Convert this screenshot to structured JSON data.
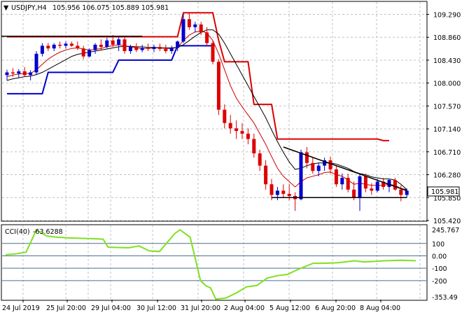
{
  "header": {
    "arrow": "▼",
    "symbol_tf": "USDJPY,H4",
    "ohlc": "105.956 106.075 105.889 105.981"
  },
  "price_axis": {
    "ticks": [
      "109.290",
      "108.860",
      "108.430",
      "108.000",
      "107.570",
      "107.140",
      "106.710",
      "106.280",
      "105.850",
      "105.420"
    ],
    "current": "105.981"
  },
  "time_axis": {
    "ticks": [
      "24 Jul 2019",
      "25 Jul 20:00",
      "29 Jul 04:00",
      "30 Jul 12:00",
      "31 Jul 20:00",
      "2 Aug 04:00",
      "5 Aug 12:00",
      "6 Aug 20:00",
      "8 Aug 04:00"
    ]
  },
  "cci_panel": {
    "title": "CCI(40)",
    "value": "-63.6288",
    "ticks": [
      "245.767",
      "100",
      "0.00",
      "-100",
      "-200",
      "-353.49"
    ],
    "levels": [
      100,
      0,
      -100,
      -200
    ]
  },
  "colors": {
    "bull": "#0000cc",
    "bear": "#dd0000",
    "ma_fast": "#cc0000",
    "ma_slow": "#000000",
    "donchian_high": "#dd0000",
    "donchian_low": "#0000cc",
    "cci_line": "#80e020",
    "level_line": "#4a7090",
    "grid": "#c0c0c0"
  },
  "chart_data": {
    "type": "candlestick",
    "series": [
      {
        "name": "USDJPY,H4",
        "ohlc": [
          [
            108.15,
            108.25,
            108.05,
            108.2
          ],
          [
            108.2,
            108.28,
            108.12,
            108.18
          ],
          [
            108.18,
            108.26,
            108.1,
            108.22
          ],
          [
            108.22,
            108.3,
            108.12,
            108.15
          ],
          [
            108.15,
            108.24,
            108.05,
            108.2
          ],
          [
            108.2,
            108.6,
            108.15,
            108.55
          ],
          [
            108.55,
            108.75,
            108.5,
            108.7
          ],
          [
            108.7,
            108.75,
            108.6,
            108.65
          ],
          [
            108.65,
            108.75,
            108.6,
            108.72
          ],
          [
            108.72,
            108.78,
            108.65,
            108.7
          ],
          [
            108.7,
            108.78,
            108.65,
            108.74
          ],
          [
            108.74,
            108.78,
            108.68,
            108.7
          ],
          [
            108.7,
            108.78,
            108.62,
            108.65
          ],
          [
            108.65,
            108.7,
            108.45,
            108.5
          ],
          [
            108.5,
            108.65,
            108.48,
            108.62
          ],
          [
            108.62,
            108.75,
            108.55,
            108.72
          ],
          [
            108.72,
            108.82,
            108.62,
            108.68
          ],
          [
            108.68,
            108.85,
            108.65,
            108.8
          ],
          [
            108.8,
            108.9,
            108.68,
            108.72
          ],
          [
            108.72,
            108.86,
            108.6,
            108.82
          ],
          [
            108.82,
            108.86,
            108.55,
            108.6
          ],
          [
            108.6,
            108.72,
            108.55,
            108.68
          ],
          [
            108.68,
            108.75,
            108.58,
            108.62
          ],
          [
            108.62,
            108.72,
            108.58,
            108.66
          ],
          [
            108.66,
            108.74,
            108.6,
            108.64
          ],
          [
            108.64,
            108.72,
            108.58,
            108.68
          ],
          [
            108.68,
            108.74,
            108.6,
            108.64
          ],
          [
            108.64,
            108.72,
            108.56,
            108.6
          ],
          [
            108.6,
            108.7,
            108.55,
            108.66
          ],
          [
            108.66,
            108.8,
            108.6,
            108.78
          ],
          [
            108.78,
            109.3,
            108.75,
            109.2
          ],
          [
            109.2,
            109.32,
            109.0,
            109.05
          ],
          [
            109.05,
            109.15,
            108.95,
            109.1
          ],
          [
            109.1,
            109.15,
            108.9,
            108.95
          ],
          [
            108.95,
            109.05,
            108.7,
            108.75
          ],
          [
            108.75,
            108.8,
            108.35,
            108.4
          ],
          [
            108.4,
            108.45,
            107.4,
            107.5
          ],
          [
            107.5,
            107.6,
            107.15,
            107.25
          ],
          [
            107.25,
            107.4,
            107.05,
            107.15
          ],
          [
            107.15,
            107.3,
            106.95,
            107.1
          ],
          [
            107.1,
            107.25,
            106.95,
            107.05
          ],
          [
            107.05,
            107.15,
            106.85,
            106.95
          ],
          [
            106.95,
            107.05,
            106.6,
            106.68
          ],
          [
            106.68,
            106.75,
            106.35,
            106.45
          ],
          [
            106.45,
            106.55,
            106.0,
            106.1
          ],
          [
            106.1,
            106.2,
            105.8,
            105.9
          ],
          [
            105.9,
            106.05,
            105.8,
            105.98
          ],
          [
            105.98,
            106.1,
            105.85,
            105.92
          ],
          [
            105.92,
            106.1,
            105.8,
            105.88
          ],
          [
            105.88,
            105.95,
            105.6,
            105.82
          ],
          [
            105.82,
            106.75,
            105.8,
            106.7
          ],
          [
            106.7,
            106.8,
            106.4,
            106.5
          ],
          [
            106.5,
            106.6,
            106.3,
            106.35
          ],
          [
            106.35,
            106.5,
            106.25,
            106.45
          ],
          [
            106.45,
            106.6,
            106.35,
            106.55
          ],
          [
            106.55,
            106.62,
            106.3,
            106.38
          ],
          [
            106.38,
            106.45,
            106.05,
            106.1
          ],
          [
            106.1,
            106.3,
            106.0,
            106.22
          ],
          [
            106.22,
            106.3,
            105.95,
            106.0
          ],
          [
            106.0,
            106.15,
            105.8,
            105.85
          ],
          [
            105.85,
            106.3,
            105.6,
            106.25
          ],
          [
            106.25,
            106.3,
            105.95,
            106.02
          ],
          [
            106.02,
            106.12,
            105.9,
            105.98
          ],
          [
            105.98,
            106.2,
            105.95,
            106.15
          ],
          [
            106.15,
            106.22,
            106.0,
            106.05
          ],
          [
            106.05,
            106.2,
            105.95,
            106.18
          ],
          [
            106.18,
            106.22,
            105.98,
            106.0
          ],
          [
            106.0,
            106.08,
            105.78,
            105.9
          ],
          [
            105.9,
            106.02,
            105.85,
            105.98
          ]
        ]
      }
    ],
    "moving_averages": [
      {
        "color": "#cc0000",
        "values": [
          108.12,
          108.15,
          108.17,
          108.18,
          108.18,
          108.25,
          108.35,
          108.45,
          108.52,
          108.58,
          108.62,
          108.65,
          108.66,
          108.64,
          108.62,
          108.63,
          108.65,
          108.68,
          108.7,
          108.72,
          108.7,
          108.68,
          108.66,
          108.65,
          108.65,
          108.66,
          108.66,
          108.65,
          108.65,
          108.67,
          108.8,
          108.9,
          108.96,
          108.98,
          108.94,
          108.8,
          108.55,
          108.25,
          107.95,
          107.72,
          107.55,
          107.4,
          107.25,
          107.05,
          106.85,
          106.62,
          106.4,
          106.25,
          106.15,
          106.05,
          106.15,
          106.22,
          106.25,
          106.28,
          106.32,
          106.33,
          106.28,
          106.25,
          106.18,
          106.1,
          106.12,
          106.1,
          106.08,
          106.08,
          106.08,
          106.1,
          106.08,
          106.02,
          106.0
        ]
      },
      {
        "color": "#000000",
        "values": [
          108.05,
          108.08,
          108.1,
          108.12,
          108.13,
          108.16,
          108.2,
          108.26,
          108.32,
          108.38,
          108.44,
          108.5,
          108.54,
          108.56,
          108.58,
          108.6,
          108.62,
          108.64,
          108.66,
          108.68,
          108.69,
          108.69,
          108.68,
          108.68,
          108.67,
          108.67,
          108.66,
          108.66,
          108.66,
          108.67,
          108.72,
          108.8,
          108.88,
          108.95,
          109.0,
          109.0,
          108.92,
          108.75,
          108.55,
          108.35,
          108.15,
          107.95,
          107.75,
          107.55,
          107.35,
          107.12,
          106.9,
          106.7,
          106.52,
          106.38,
          106.4,
          106.45,
          106.48,
          106.5,
          106.5,
          106.5,
          106.48,
          106.44,
          106.4,
          106.34,
          106.3,
          106.28,
          106.24,
          106.22,
          106.2,
          106.2,
          106.18,
          106.1,
          106.0
        ]
      }
    ],
    "donchian": {
      "upper": [
        [
          0,
          108.87
        ],
        [
          20,
          108.87
        ],
        [
          21,
          108.87
        ],
        [
          29,
          108.87
        ],
        [
          30,
          109.32
        ],
        [
          35,
          109.32
        ],
        [
          36,
          108.8
        ],
        [
          37,
          108.4
        ],
        [
          41,
          108.4
        ],
        [
          42,
          107.6
        ],
        [
          45,
          107.6
        ],
        [
          46,
          106.95
        ],
        [
          63,
          106.95
        ],
        [
          64,
          106.92
        ],
        [
          65,
          106.92
        ]
      ],
      "lower": [
        [
          0,
          107.8
        ],
        [
          6,
          107.8
        ],
        [
          7,
          108.2
        ],
        [
          18,
          108.2
        ],
        [
          19,
          108.43
        ],
        [
          28,
          108.43
        ],
        [
          29,
          108.7
        ],
        [
          35,
          108.7
        ]
      ]
    },
    "trendlines": [
      {
        "from": [
          -1,
          108.88
        ],
        "to": [
          23,
          108.88
        ]
      },
      {
        "from": [
          45,
          105.85
        ],
        "to": [
          68,
          105.85
        ]
      },
      {
        "from": [
          47,
          106.8
        ],
        "to": [
          68,
          105.98
        ]
      }
    ],
    "cci": [
      [
        0,
        10
      ],
      [
        2,
        15
      ],
      [
        4,
        30
      ],
      [
        6,
        210
      ],
      [
        8,
        160
      ],
      [
        10,
        150
      ],
      [
        12,
        145
      ],
      [
        16,
        140
      ],
      [
        19,
        135
      ],
      [
        20,
        70
      ],
      [
        24,
        65
      ],
      [
        26,
        80
      ],
      [
        28,
        40
      ],
      [
        30,
        35
      ],
      [
        33,
        180
      ],
      [
        34,
        210
      ],
      [
        36,
        150
      ],
      [
        38,
        -200
      ],
      [
        39,
        -240
      ],
      [
        40,
        -260
      ],
      [
        41,
        -350
      ],
      [
        43,
        -340
      ],
      [
        45,
        -300
      ],
      [
        47,
        -250
      ],
      [
        49,
        -240
      ],
      [
        51,
        -180
      ],
      [
        53,
        -160
      ],
      [
        55,
        -150
      ],
      [
        57,
        -110
      ],
      [
        60,
        -60
      ],
      [
        62,
        -60
      ],
      [
        65,
        -55
      ],
      [
        68,
        -40
      ],
      [
        70,
        -50
      ],
      [
        74,
        -40
      ],
      [
        77,
        -35
      ],
      [
        80,
        -40
      ]
    ],
    "price_range": [
      105.42,
      109.52
    ],
    "cci_range": [
      -353.49,
      245.767
    ]
  }
}
